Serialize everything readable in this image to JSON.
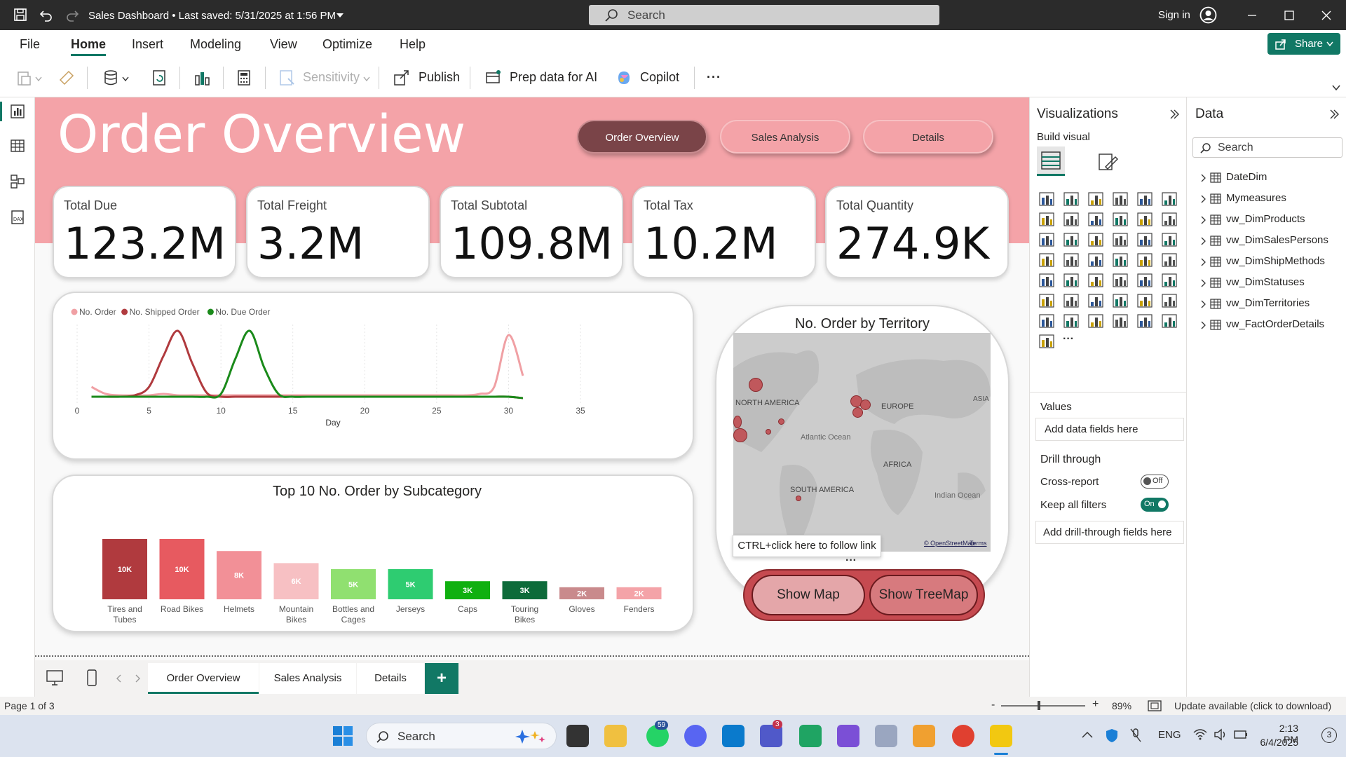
{
  "titlebar": {
    "doc_title": "Sales Dashboard • Last saved: 5/31/2025 at 1:56 PM",
    "search_placeholder": "Search",
    "sign_in": "Sign in"
  },
  "menu": {
    "items": [
      "File",
      "Home",
      "Insert",
      "Modeling",
      "View",
      "Optimize",
      "Help"
    ],
    "active": "Home",
    "share": "Share"
  },
  "ribbon": {
    "sensitivity": "Sensitivity",
    "publish": "Publish",
    "prep_data": "Prep data for AI",
    "copilot": "Copilot",
    "more": "···"
  },
  "report": {
    "title": "Order Overview",
    "nav": [
      "Order Overview",
      "Sales Analysis",
      "Details"
    ],
    "kpis": [
      {
        "label": "Total Due",
        "value": "123.2M"
      },
      {
        "label": "Total Freight",
        "value": "3.2M"
      },
      {
        "label": "Total Subtotal",
        "value": "109.8M"
      },
      {
        "label": "Total Tax",
        "value": "10.2M"
      },
      {
        "label": "Total Quantity",
        "value": "274.9K"
      }
    ],
    "map": {
      "title": "No. Order by Territory",
      "labels": [
        "NORTH AMERICA",
        "EUROPE",
        "ASIA",
        "Atlantic Ocean",
        "AFRICA",
        "SOUTH AMERICA",
        "Indian Ocean"
      ],
      "attribution": "© OpenStreetMap",
      "terms": "Terms",
      "tooltip": "CTRL+click here to follow link",
      "show_map": "Show Map",
      "show_treemap": "Show TreeMap"
    }
  },
  "chart_data": [
    {
      "type": "line",
      "title": "",
      "xlabel": "Day",
      "ylabel": "",
      "xlim": [
        0,
        35
      ],
      "x_ticks": [
        0,
        5,
        10,
        15,
        20,
        25,
        30,
        35
      ],
      "legend_position": "top-left",
      "x": [
        1,
        2,
        3,
        4,
        5,
        6,
        7,
        8,
        9,
        10,
        11,
        12,
        13,
        14,
        15,
        16,
        17,
        18,
        19,
        20,
        21,
        22,
        23,
        24,
        25,
        26,
        27,
        28,
        29,
        30,
        31
      ],
      "series": [
        {
          "name": "No. Order",
          "color": "#f0a0a4",
          "values": [
            8,
            3,
            2,
            2,
            2,
            3,
            2,
            2,
            2,
            2,
            2,
            2,
            2,
            2,
            2,
            2,
            2,
            2,
            2,
            2,
            2,
            2,
            2,
            2,
            2,
            2,
            2,
            3,
            8,
            45,
            16
          ]
        },
        {
          "name": "No. Shipped Order",
          "color": "#b03a3e",
          "values": [
            1,
            1,
            1,
            2,
            8,
            30,
            48,
            25,
            4,
            1,
            1,
            1,
            1,
            1,
            1,
            1,
            1,
            1,
            1,
            1,
            1,
            1,
            1,
            1,
            1,
            1,
            1,
            1,
            1,
            1,
            0
          ]
        },
        {
          "name": "No. Due Order",
          "color": "#1a8a1a",
          "values": [
            1,
            1,
            1,
            1,
            1,
            1,
            1,
            1,
            1,
            3,
            28,
            48,
            22,
            3,
            1,
            1,
            1,
            1,
            1,
            1,
            1,
            1,
            1,
            1,
            1,
            1,
            1,
            1,
            1,
            1,
            0
          ]
        }
      ]
    },
    {
      "type": "bar",
      "title": "Top 10 No. Order by Subcategory",
      "categories": [
        "Tires and Tubes",
        "Road Bikes",
        "Helmets",
        "Mountain Bikes",
        "Bottles and Cages",
        "Jerseys",
        "Caps",
        "Touring Bikes",
        "Gloves",
        "Fenders"
      ],
      "values": [
        10,
        10,
        8,
        6,
        5,
        5,
        3,
        3,
        2,
        2
      ],
      "labels": [
        "10K",
        "10K",
        "8K",
        "6K",
        "5K",
        "5K",
        "3K",
        "3K",
        "2K",
        "2K"
      ],
      "colors": [
        "#b03a3e",
        "#e75a60",
        "#f29097",
        "#f7c0c3",
        "#90e070",
        "#2ecc71",
        "#10b010",
        "#0d6b3a",
        "#c98a8c",
        "#f4a3a8"
      ],
      "ylim": [
        0,
        10
      ]
    }
  ],
  "visualizations": {
    "title": "Visualizations",
    "build_visual": "Build visual",
    "values_label": "Values",
    "add_data_fields": "Add data fields here",
    "drill_through": "Drill through",
    "cross_report": "Cross-report",
    "cross_report_state": "Off",
    "keep_all_filters": "Keep all filters",
    "keep_filters_state": "On",
    "add_drill_fields": "Add drill-through fields here"
  },
  "data_pane": {
    "title": "Data",
    "search_placeholder": "Search",
    "tables": [
      "DateDim",
      "Mymeasures",
      "vw_DimProducts",
      "vw_DimSalesPersons",
      "vw_DimShipMethods",
      "vw_DimStatuses",
      "vw_DimTerritories",
      "vw_FactOrderDetails"
    ]
  },
  "tabs": {
    "pages": [
      "Order Overview",
      "Sales Analysis",
      "Details"
    ],
    "active": "Order Overview",
    "add": "+"
  },
  "status": {
    "page": "Page 1 of 3",
    "zoom": "89%",
    "update": "Update available (click to download)"
  },
  "taskbar": {
    "search": "Search",
    "lang": "ENG",
    "time": "2:13 PM",
    "date": "6/4/2025",
    "whatsapp_badge": "59",
    "teams_badge": "3",
    "notif_count": "3"
  },
  "colors": {
    "accent_pink": "#f4a3a8",
    "active_pill": "#7a4448",
    "teal": "#117865"
  }
}
